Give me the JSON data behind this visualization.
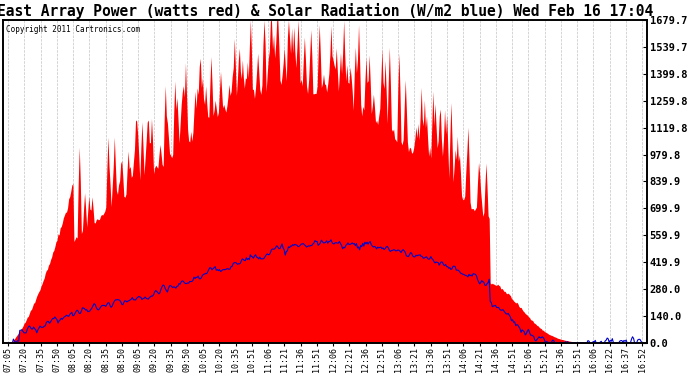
{
  "title": "East Array Power (watts red) & Solar Radiation (W/m2 blue) Wed Feb 16 17:04",
  "copyright": "Copyright 2011 Cartronics.com",
  "ylabel_right_ticks": [
    0.0,
    140.0,
    280.0,
    419.9,
    559.9,
    699.9,
    839.9,
    979.8,
    1119.8,
    1259.8,
    1399.8,
    1539.7,
    1679.7
  ],
  "ymax": 1679.7,
  "ymin": 0.0,
  "bg_color": "#ffffff",
  "plot_bg_color": "#ffffff",
  "grid_color": "#aaaaaa",
  "red_color": "#ff0000",
  "blue_color": "#0000cd",
  "title_fontsize": 10.5,
  "tick_fontsize": 7.5,
  "x_label_fontsize": 6.0
}
